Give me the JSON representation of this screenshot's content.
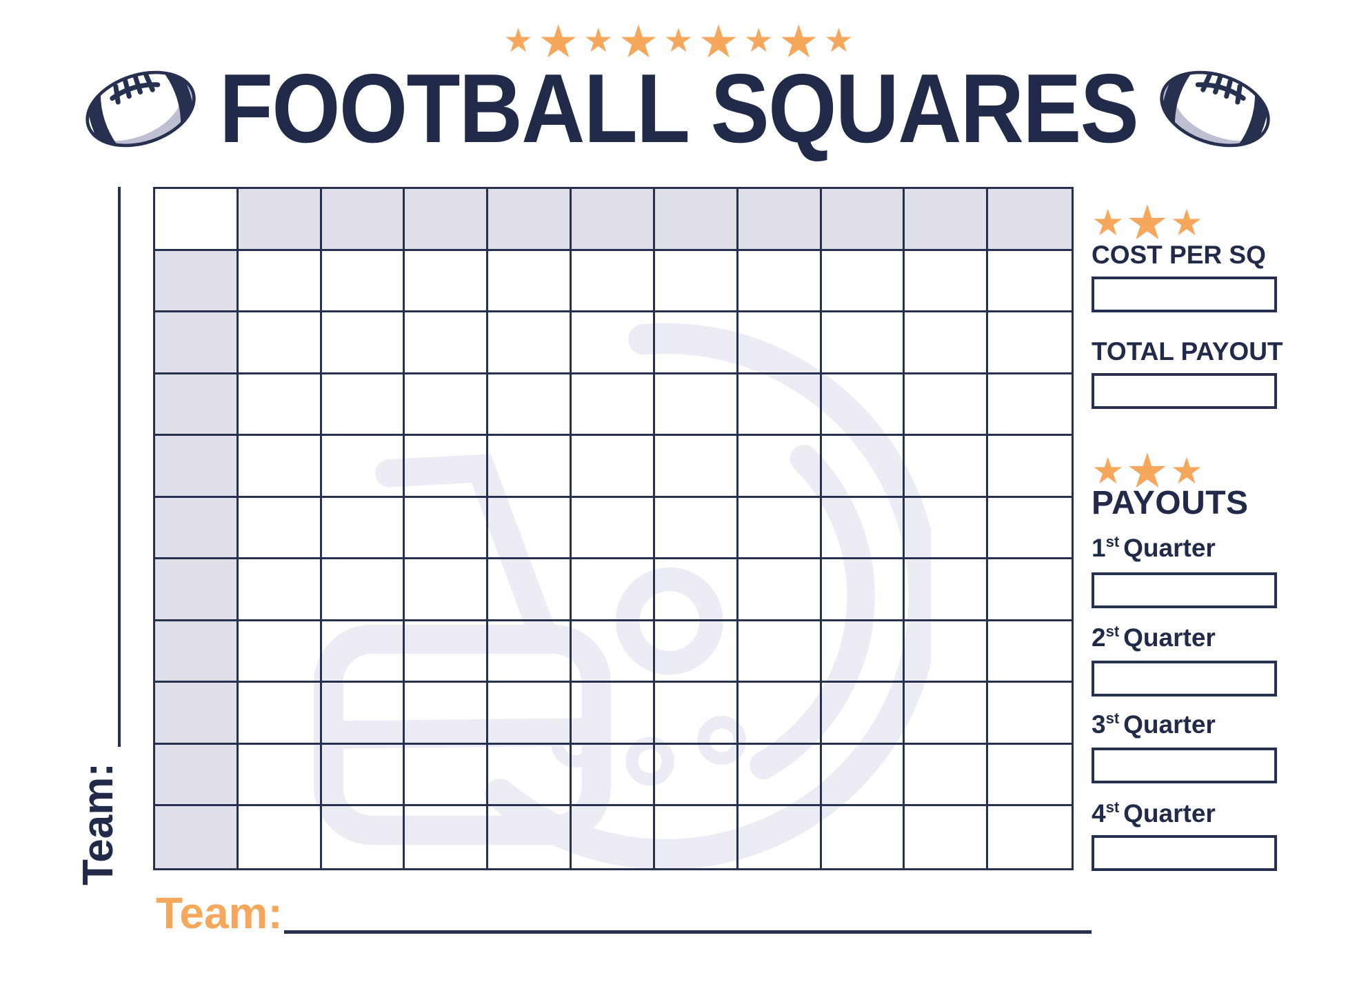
{
  "title": "FOOTBALL SQUARES",
  "decor": {
    "top_star_count": 9,
    "side_star_count": 3,
    "star_glyph": "★"
  },
  "team_left": {
    "label": "Team:"
  },
  "team_bottom": {
    "label": "Team:"
  },
  "grid": {
    "rows": 11,
    "cols": 11
  },
  "sidebar": {
    "cost": {
      "label": "COST PER SQ",
      "value": ""
    },
    "total": {
      "label": "TOTAL PAYOUT",
      "value": ""
    },
    "payouts_heading": "PAYOUTS",
    "quarters": [
      {
        "number": "1",
        "ordinal": "st",
        "word": "Quarter",
        "value": ""
      },
      {
        "number": "2",
        "ordinal": "st",
        "word": "Quarter",
        "value": ""
      },
      {
        "number": "3",
        "ordinal": "st",
        "word": "Quarter",
        "value": ""
      },
      {
        "number": "4",
        "ordinal": "st",
        "word": "Quarter",
        "value": ""
      }
    ]
  },
  "icons": {
    "football": "football-icon",
    "helmet": "helmet-watermark-icon",
    "star": "star-icon"
  },
  "colors": {
    "navy": "#27304F",
    "title_navy": "#212A48",
    "orange": "#F5A85C",
    "grid_header_fill": "#DFDFE9",
    "watermark": "#ECEDF4",
    "ball_shadow": "#BEBFD3",
    "paper": "#FFFFFF"
  }
}
